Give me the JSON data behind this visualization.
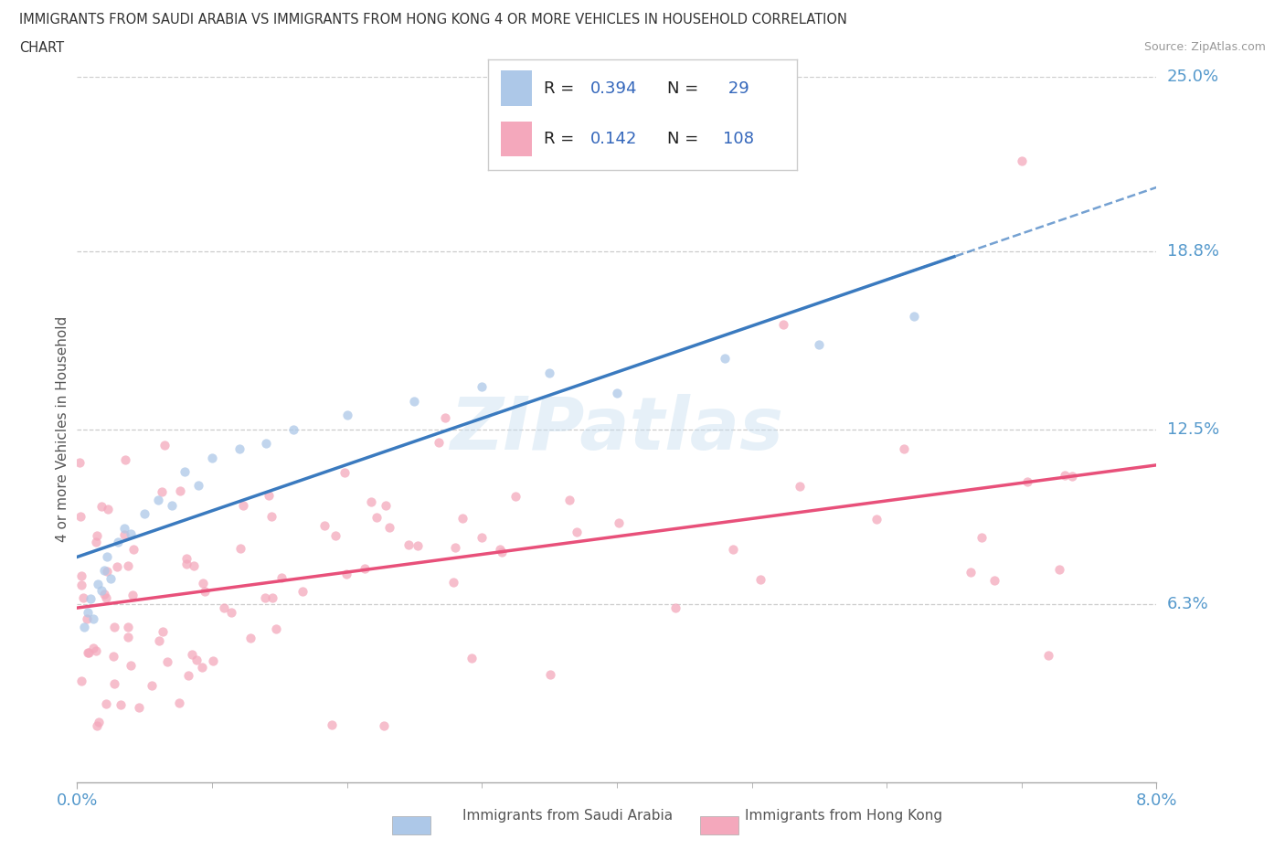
{
  "title_line1": "IMMIGRANTS FROM SAUDI ARABIA VS IMMIGRANTS FROM HONG KONG 4 OR MORE VEHICLES IN HOUSEHOLD CORRELATION",
  "title_line2": "CHART",
  "source": "Source: ZipAtlas.com",
  "xlim": [
    0.0,
    8.0
  ],
  "ylim": [
    0.0,
    25.0
  ],
  "xticks": [
    0.0,
    8.0
  ],
  "xticklabels": [
    "0.0%",
    "8.0%"
  ],
  "yticks": [
    6.3,
    12.5,
    18.8,
    25.0
  ],
  "yticklabels": [
    "6.3%",
    "12.5%",
    "18.8%",
    "25.0%"
  ],
  "ylabel": "4 or more Vehicles in Household",
  "saudi_color": "#adc8e8",
  "hk_color": "#f4a8bc",
  "saudi_R": 0.394,
  "saudi_N": 29,
  "hk_R": 0.142,
  "hk_N": 108,
  "saudi_line_color": "#3a7abf",
  "hk_line_color": "#e8507a",
  "grid_color": "#cccccc",
  "tick_label_color": "#5599cc",
  "watermark": "ZIPatlas",
  "legend_text_color": "#3366bb",
  "legend_label_color": "#111111"
}
